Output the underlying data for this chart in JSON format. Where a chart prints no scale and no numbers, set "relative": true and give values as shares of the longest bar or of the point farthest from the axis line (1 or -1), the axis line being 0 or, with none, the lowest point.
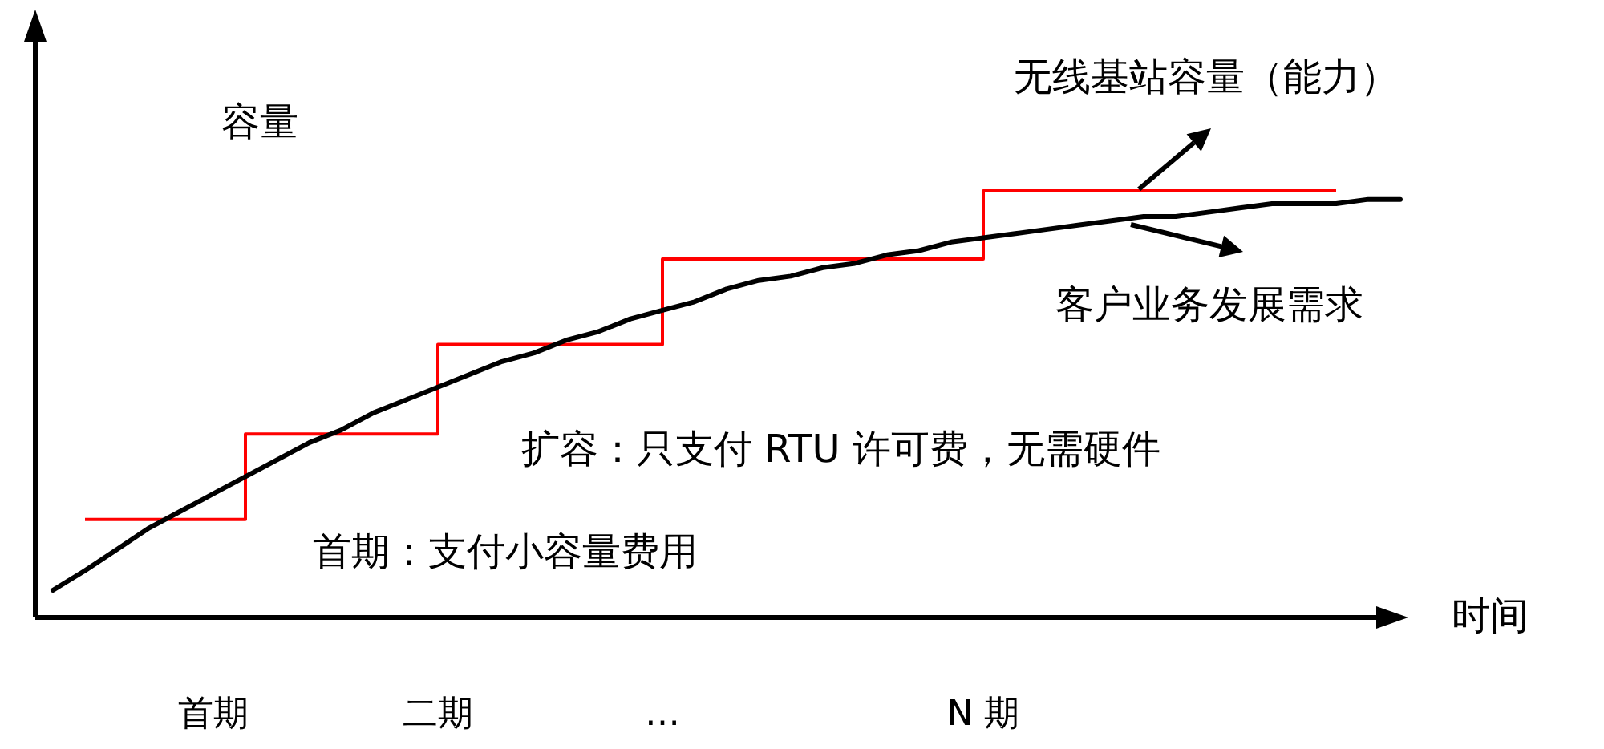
{
  "chart_data": {
    "type": "line",
    "relative": true,
    "xlabel": "时间",
    "ylabel": "容量",
    "categories": [
      null,
      null,
      null,
      null,
      null,
      "首期",
      null,
      null,
      null,
      null,
      null,
      null,
      "二期",
      null,
      null,
      null,
      null,
      null,
      null,
      "…",
      null,
      null,
      null,
      null,
      null,
      null,
      null,
      null,
      null,
      "N 期",
      null,
      null,
      null,
      null,
      null,
      null,
      null,
      null,
      null,
      null,
      null,
      null,
      null
    ],
    "series": [
      {
        "name": "无线基站容量（能力）",
        "type": "step",
        "color": "#ff0000",
        "values": [
          null,
          0.23,
          0.23,
          0.23,
          0.23,
          0.23,
          0.43,
          0.43,
          0.43,
          0.43,
          0.43,
          0.43,
          0.64,
          0.64,
          0.64,
          0.64,
          0.64,
          0.64,
          0.64,
          0.84,
          0.84,
          0.84,
          0.84,
          0.84,
          0.84,
          0.84,
          0.84,
          0.84,
          0.84,
          1.0,
          1.0,
          1.0,
          1.0,
          1.0,
          1.0,
          1.0,
          1.0,
          1.0,
          1.0,
          1.0,
          1.0,
          null,
          null
        ]
      },
      {
        "name": "客户业务发展需求",
        "color": "#000000",
        "values": [
          0.064,
          0.11,
          0.16,
          0.21,
          0.25,
          0.29,
          0.33,
          0.37,
          0.41,
          0.44,
          0.48,
          0.51,
          0.54,
          0.57,
          0.6,
          0.62,
          0.65,
          0.67,
          0.7,
          0.72,
          0.74,
          0.77,
          0.79,
          0.8,
          0.82,
          0.83,
          0.85,
          0.86,
          0.88,
          0.89,
          0.9,
          0.91,
          0.92,
          0.93,
          0.94,
          0.94,
          0.95,
          0.96,
          0.97,
          0.97,
          0.97,
          0.98,
          0.98
        ]
      }
    ],
    "annotations": [
      "扩容：只支付 RTU 许可费，无需硬件",
      "首期：支付小容量费用"
    ]
  }
}
